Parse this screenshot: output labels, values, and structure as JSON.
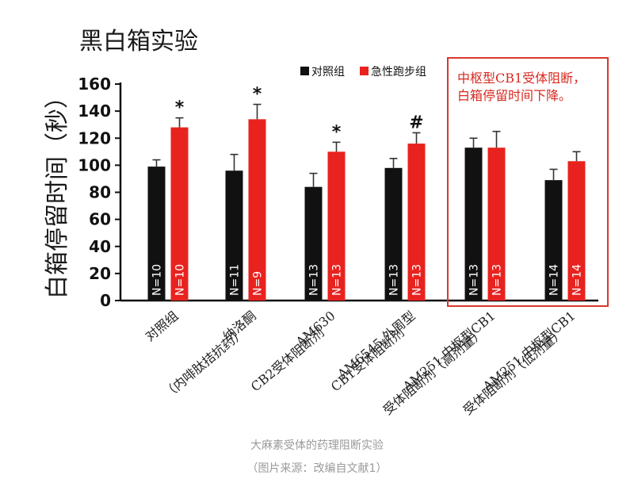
{
  "chart_data": {
    "type": "bar",
    "title": "黑白箱实验",
    "ylabel": "白箱停留时间（秒）",
    "ylim": [
      0,
      160
    ],
    "yticks": [
      0,
      20,
      40,
      60,
      80,
      100,
      120,
      140,
      160
    ],
    "categories": [
      [
        "对照组"
      ],
      [
        "纳洛酮",
        "（内啡肽拮抗药）"
      ],
      [
        "AM630",
        "CB2受体阻断剂"
      ],
      [
        "AM6545 外周型",
        "CB1受体阻断剂"
      ],
      [
        "AM251 中枢型CB1",
        "受体阻断剂（高剂量）"
      ],
      [
        "AM251 中枢型CB1",
        "受体阻断剂（低剂量）"
      ]
    ],
    "series": [
      {
        "name": "对照组",
        "color": "#111111",
        "values": [
          99,
          96,
          84,
          98,
          113,
          89
        ],
        "errors": [
          5,
          12,
          10,
          7,
          7,
          8
        ],
        "n_labels": [
          "N=10",
          "N=11",
          "N=13",
          "N=13",
          "N=13",
          "N=14"
        ]
      },
      {
        "name": "急性跑步组",
        "color": "#e8231f",
        "values": [
          128,
          134,
          110,
          116,
          113,
          103
        ],
        "errors": [
          7,
          11,
          7,
          8,
          12,
          7
        ],
        "n_labels": [
          "N=10",
          "N=9",
          "N=13",
          "N=13",
          "N=13",
          "N=14"
        ]
      }
    ],
    "significance": [
      "*",
      "*",
      "*",
      "#",
      "",
      ""
    ],
    "legend_position": "top-right",
    "annotation": {
      "lines": [
        "中枢型CB1受体阻断，",
        "白箱停留时间下降。"
      ],
      "color": "#d9281f"
    }
  },
  "caption": {
    "main": "大麻素受体的药理阻断实验",
    "source": "（图片来源：改编自文献1）"
  }
}
